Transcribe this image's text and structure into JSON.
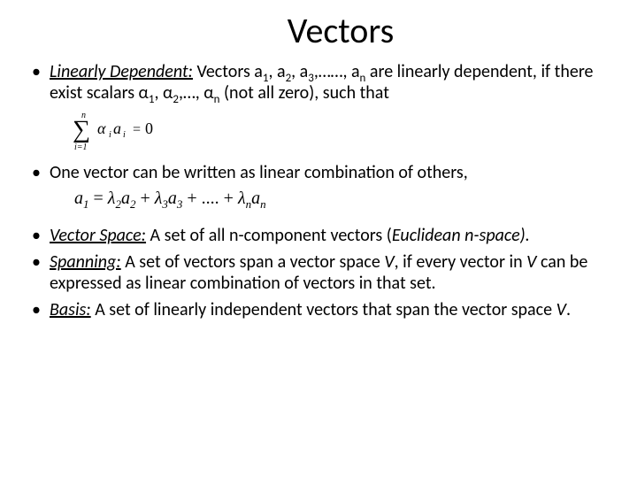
{
  "title": "Vectors",
  "bullets": {
    "b1": {
      "term": "Linearly Dependent:",
      "text_before": " Vectors a",
      "sub1": "1",
      "c1": ", a",
      "sub2": "2",
      "c2": ", a",
      "sub3": "3",
      "c3": ",……, a",
      "subn": "n",
      "text_mid": " are linearly dependent, if there exist scalars α",
      "a1": "1",
      "c4": ", α",
      "a2": "2",
      "c5": ",…, α",
      "an": "n",
      "text_end": " (not all zero), such that"
    },
    "b2": {
      "text": "One vector can be written as linear combination of others,"
    },
    "b3": {
      "term": "Vector Space:",
      "text": " A set of all n-component vectors (",
      "ital": "Euclidean n-space).",
      "text_end": ""
    },
    "b4": {
      "term": "Spanning:",
      "text_a": " A set of vectors span a vector space ",
      "V1": "V",
      "text_b": ", if every vector in ",
      "V2": "V",
      "text_c": " can be expressed as linear combination of vectors in that set."
    },
    "b5": {
      "term": "Basis:",
      "text_a": " A set of linearly independent vectors that span the vector space ",
      "V": "V",
      "text_b": "."
    }
  },
  "formula1": {
    "sum_n": "n",
    "sum_i": "i=1",
    "body": "αᵢaᵢ = 0",
    "alpha": "α",
    "sub_i1": "i",
    "a": "a",
    "sub_i2": "i",
    "eq": "=",
    "zero": "0"
  },
  "formula2": {
    "lhs": "a",
    "lhs_sub": "1",
    "eq": " = ",
    "l2": "λ",
    "l2s": "2",
    "a2": "a",
    "a2s": "2",
    "plus1": " + ",
    "l3": "λ",
    "l3s": "3",
    "a3": "a",
    "a3s": "3",
    "plus2": " + .... + ",
    "ln": "λ",
    "lns": "n",
    "an": "a",
    "ans": "n"
  },
  "colors": {
    "text": "#000000",
    "background": "#ffffff"
  },
  "typography": {
    "title_fontsize": 40,
    "body_fontsize": 20,
    "font_family": "Calibri"
  }
}
